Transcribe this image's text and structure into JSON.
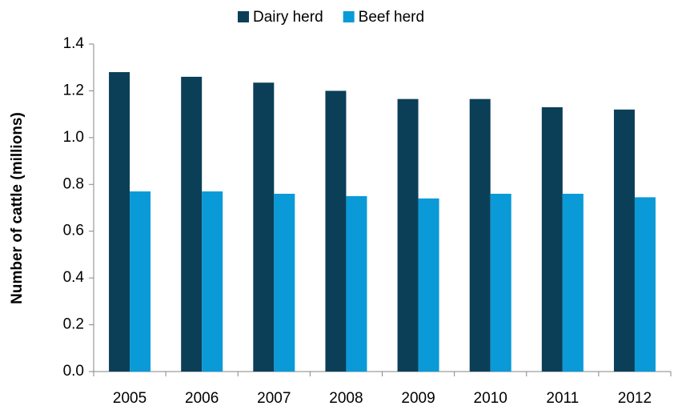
{
  "chart_data": {
    "type": "bar",
    "y_label": "Number of cattle (millions)",
    "categories": [
      "2005",
      "2006",
      "2007",
      "2008",
      "2009",
      "2010",
      "2011",
      "2012"
    ],
    "series": [
      {
        "name": "Dairy herd",
        "color": "#0b3f58",
        "values": [
          1.28,
          1.26,
          1.235,
          1.2,
          1.165,
          1.165,
          1.13,
          1.12
        ]
      },
      {
        "name": "Beef herd",
        "color": "#0a9ad7",
        "values": [
          0.77,
          0.77,
          0.76,
          0.75,
          0.74,
          0.76,
          0.76,
          0.745
        ]
      }
    ],
    "ylim": [
      0,
      1.4
    ],
    "yticks": [
      {
        "value": 0,
        "label": "0.0"
      },
      0.2,
      0.4,
      0.6,
      0.8,
      {
        "value": 1,
        "label": "1.0"
      },
      1.2,
      1.4
    ],
    "grid": false,
    "legend": "top"
  }
}
